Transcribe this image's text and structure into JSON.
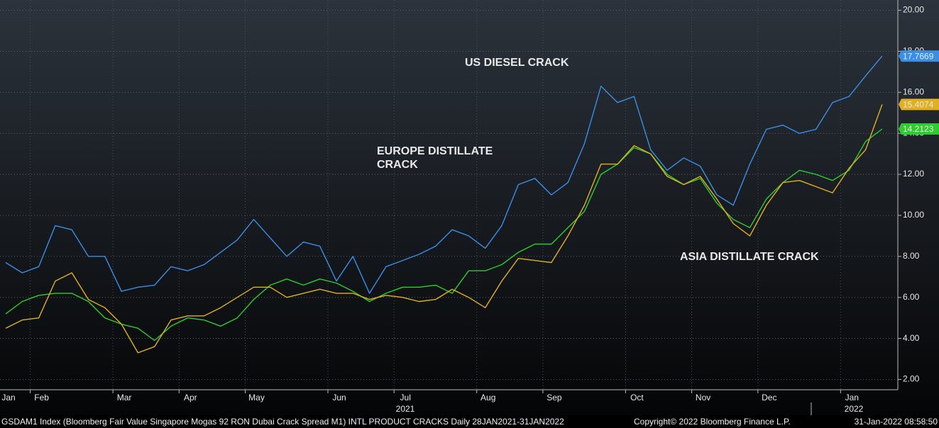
{
  "chart_data": {
    "type": "line",
    "categories": [
      "Jan",
      null,
      "Feb",
      null,
      null,
      null,
      null,
      "Mar",
      null,
      null,
      null,
      "Apr",
      null,
      null,
      null,
      "May",
      null,
      null,
      null,
      null,
      "Jun",
      null,
      null,
      null,
      "Jul",
      null,
      null,
      null,
      null,
      "Aug",
      null,
      null,
      null,
      "Sep",
      null,
      null,
      null,
      null,
      "Oct",
      null,
      null,
      null,
      "Nov",
      null,
      null,
      null,
      "Dec",
      null,
      null,
      null,
      null,
      "Jan",
      null,
      null
    ],
    "x_group_labels": [
      "2021",
      "2022"
    ],
    "series": [
      {
        "name": "US DIESEL CRACK",
        "color": "#3a8ee6",
        "values": [
          7.7,
          7.2,
          7.5,
          9.5,
          9.3,
          8.0,
          8.0,
          6.3,
          6.5,
          6.6,
          7.5,
          7.3,
          7.6,
          8.2,
          8.8,
          9.8,
          8.9,
          8.0,
          8.7,
          8.5,
          6.8,
          8.0,
          6.2,
          7.5,
          7.8,
          8.1,
          8.5,
          9.3,
          9.0,
          8.4,
          9.5,
          11.5,
          11.8,
          11.0,
          11.6,
          13.5,
          16.3,
          15.5,
          15.8,
          13.2,
          12.2,
          12.8,
          12.4,
          11.0,
          10.5,
          12.5,
          14.2,
          14.4,
          14.0,
          14.2,
          15.5,
          15.8,
          16.8,
          17.7669
        ]
      },
      {
        "name": "EUROPE DISTILLATE CRACK",
        "color": "#2ecc2e",
        "values": [
          5.2,
          5.8,
          6.1,
          6.2,
          6.2,
          5.8,
          5.0,
          4.7,
          4.5,
          3.9,
          4.6,
          5.0,
          4.9,
          4.6,
          5.0,
          5.9,
          6.6,
          6.9,
          6.6,
          6.9,
          6.7,
          6.3,
          5.8,
          6.2,
          6.5,
          6.5,
          6.6,
          6.2,
          7.3,
          7.3,
          7.6,
          8.2,
          8.6,
          8.6,
          9.4,
          10.2,
          12.0,
          12.5,
          13.3,
          13.0,
          12.0,
          11.5,
          11.8,
          10.6,
          9.8,
          9.4,
          10.8,
          11.6,
          12.2,
          12.0,
          11.7,
          12.2,
          13.6,
          14.2123
        ]
      },
      {
        "name": "ASIA DISTILLATE CRACK",
        "color": "#e0b020",
        "values": [
          4.5,
          4.9,
          5.0,
          6.8,
          7.2,
          5.9,
          5.5,
          4.7,
          3.3,
          3.6,
          4.9,
          5.1,
          5.1,
          5.5,
          6.0,
          6.5,
          6.5,
          6.0,
          6.2,
          6.4,
          6.2,
          6.2,
          5.9,
          6.1,
          6.0,
          5.8,
          5.9,
          6.4,
          6.0,
          5.5,
          6.8,
          7.9,
          7.8,
          7.7,
          9.0,
          10.5,
          12.5,
          12.5,
          13.4,
          13.0,
          11.9,
          11.5,
          11.9,
          10.8,
          9.6,
          9.0,
          10.5,
          11.6,
          11.7,
          11.4,
          11.1,
          12.3,
          13.2,
          15.4074
        ]
      }
    ],
    "annotations": [
      {
        "lines": [
          "US DIESEL CRACK"
        ],
        "color": "#3d8ef0"
      },
      {
        "lines": [
          "EUROPE DISTILLATE",
          "CRACK"
        ],
        "color": "#22d022"
      },
      {
        "lines": [
          "ASIA DISTILLATE CRACK"
        ],
        "color": "#f0c419"
      }
    ],
    "ylim": [
      1.5,
      20.5
    ],
    "yticks": [
      {
        "value": 2,
        "label": "2.00"
      },
      {
        "value": 4,
        "label": "4.00"
      },
      {
        "value": 6,
        "label": "6.00"
      },
      {
        "value": 8,
        "label": "8.00"
      },
      {
        "value": 10,
        "label": "10.00"
      },
      {
        "value": 12,
        "label": "12.00"
      },
      {
        "value": 14,
        "label": "14.00"
      },
      {
        "value": 16,
        "label": "16.00"
      },
      {
        "value": 18,
        "label": "18.00"
      },
      {
        "value": 20,
        "label": "20.00"
      }
    ],
    "grid": true,
    "footer": {
      "source": "GSDAM1 Index (Bloomberg Fair Value Singapore Mogas 92 RON Dubai Crack Spread M1) INTL PRODUCT CRACKS  Daily 28JAN2021-31JAN2022",
      "copyright": "Copyright© 2022 Bloomberg Finance L.P.",
      "timestamp": "31-Jan-2022 08:58:50"
    }
  }
}
